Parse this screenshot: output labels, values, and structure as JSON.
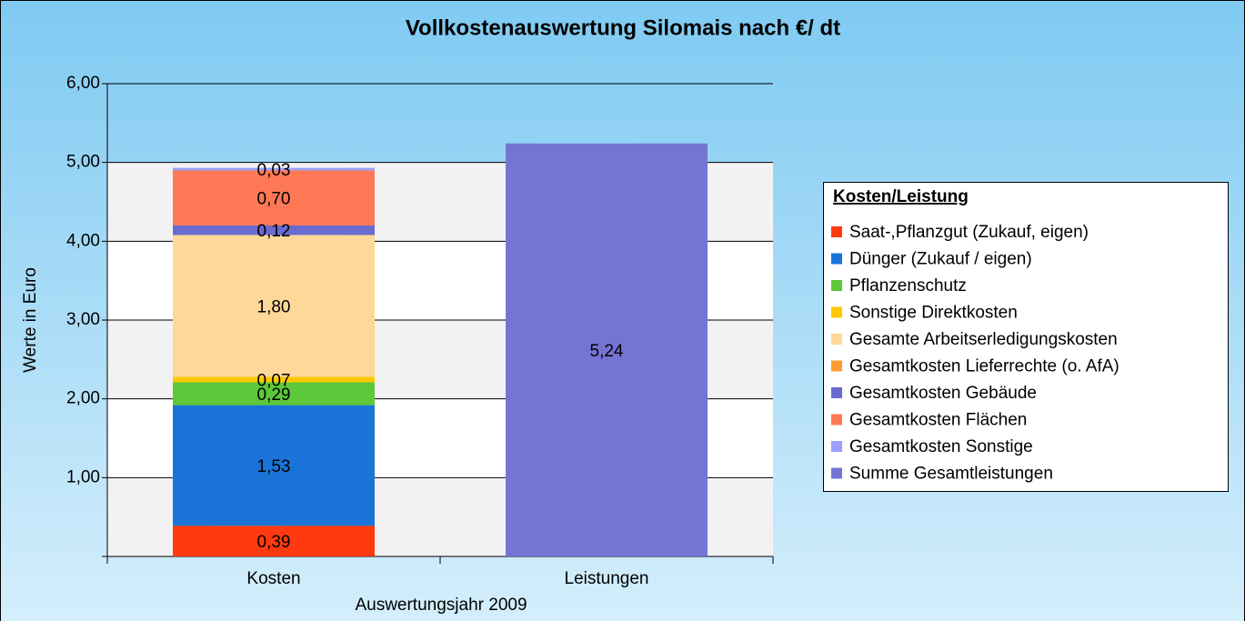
{
  "chart_data": {
    "type": "stacked_bar",
    "title": "Vollkostenauswertung Silomais nach €/ dt",
    "y_label": "Werte in Euro",
    "x_label": "Auswertungsjahr  2009",
    "legend_title": "Kosten/Leistung",
    "legend": "right",
    "categories": [
      "Kosten",
      "Leistungen"
    ],
    "ylim": [
      0,
      6
    ],
    "yticks": [
      {
        "value": 1,
        "label": "1,00"
      },
      {
        "value": 2,
        "label": "2,00"
      },
      {
        "value": 3,
        "label": "3,00"
      },
      {
        "value": 4,
        "label": "4,00"
      },
      {
        "value": 5,
        "label": "5,00"
      },
      {
        "value": 6,
        "label": "6,00"
      }
    ],
    "series": [
      {
        "name": "Saat-,Pflanzgut (Zukauf, eigen)",
        "color": "#ff3a10",
        "values": [
          0.39,
          null
        ],
        "value_labels": [
          "0,39",
          null
        ]
      },
      {
        "name": "Dünger (Zukauf / eigen)",
        "color": "#1a74d8",
        "values": [
          1.53,
          null
        ],
        "value_labels": [
          "1,53",
          null
        ]
      },
      {
        "name": "Pflanzenschutz",
        "color": "#5cc83a",
        "values": [
          0.29,
          null
        ],
        "value_labels": [
          "0,29",
          null
        ]
      },
      {
        "name": "Sonstige Direktkosten",
        "color": "#ffc800",
        "values": [
          0.07,
          null
        ],
        "value_labels": [
          "0,07",
          null
        ]
      },
      {
        "name": "Gesamte Arbeitserledigungskosten",
        "color": "#fdd898",
        "values": [
          1.8,
          null
        ],
        "value_labels": [
          "1,80",
          null
        ]
      },
      {
        "name": "Gesamtkosten Lieferrechte (o. AfA)",
        "color": "#ff9a30",
        "values": [
          null,
          null
        ],
        "value_labels": [
          null,
          null
        ]
      },
      {
        "name": "Gesamtkosten Gebäude",
        "color": "#6a6ad0",
        "values": [
          0.12,
          null
        ],
        "value_labels": [
          "0,12",
          null
        ]
      },
      {
        "name": "Gesamtkosten Flächen",
        "color": "#ff7855",
        "values": [
          0.7,
          null
        ],
        "value_labels": [
          "0,70",
          null
        ]
      },
      {
        "name": "Gesamtkosten Sonstige",
        "color": "#9aa0ff",
        "values": [
          0.03,
          null
        ],
        "value_labels": [
          "0,03",
          null
        ]
      },
      {
        "name": "Summe Gesamtleistungen",
        "color": "#7474d4",
        "values": [
          null,
          5.24
        ],
        "value_labels": [
          null,
          "5,24"
        ]
      }
    ]
  }
}
